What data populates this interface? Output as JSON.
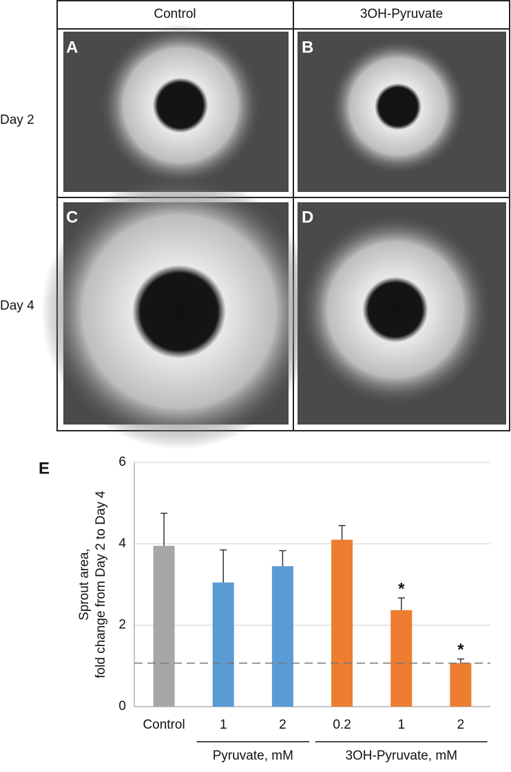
{
  "panels": {
    "columns": [
      "Control",
      "3OH-Pyruvate"
    ],
    "rows": [
      "Day 2",
      "Day 4"
    ],
    "letters": [
      "A",
      "B",
      "C",
      "D"
    ]
  },
  "chart_data": {
    "type": "bar",
    "panel_letter": "E",
    "ylabel": [
      "Sprout area,",
      "fold change from Day 2 to Day 4"
    ],
    "categories": [
      "Control",
      "1",
      "2",
      "0.2",
      "1",
      "2"
    ],
    "category_groups": [
      null,
      "Pyruvate, mM",
      "Pyruvate, mM",
      "3OH-Pyruvate, mM",
      "3OH-Pyruvate, mM",
      "3OH-Pyruvate, mM"
    ],
    "values": [
      3.95,
      3.05,
      3.45,
      4.1,
      2.37,
      1.07
    ],
    "errors": [
      0.8,
      0.8,
      0.38,
      0.35,
      0.3,
      0.1
    ],
    "colors": [
      "#a5a7a7",
      "#5b9bd5",
      "#5b9bd5",
      "#ed7d31",
      "#ed7d31",
      "#ed7d31"
    ],
    "significance": [
      null,
      null,
      null,
      null,
      "*",
      "*"
    ],
    "reference_line": 1.07,
    "ylim": [
      0,
      6
    ],
    "yticks": [
      0,
      2,
      4,
      6
    ],
    "grid": true
  }
}
